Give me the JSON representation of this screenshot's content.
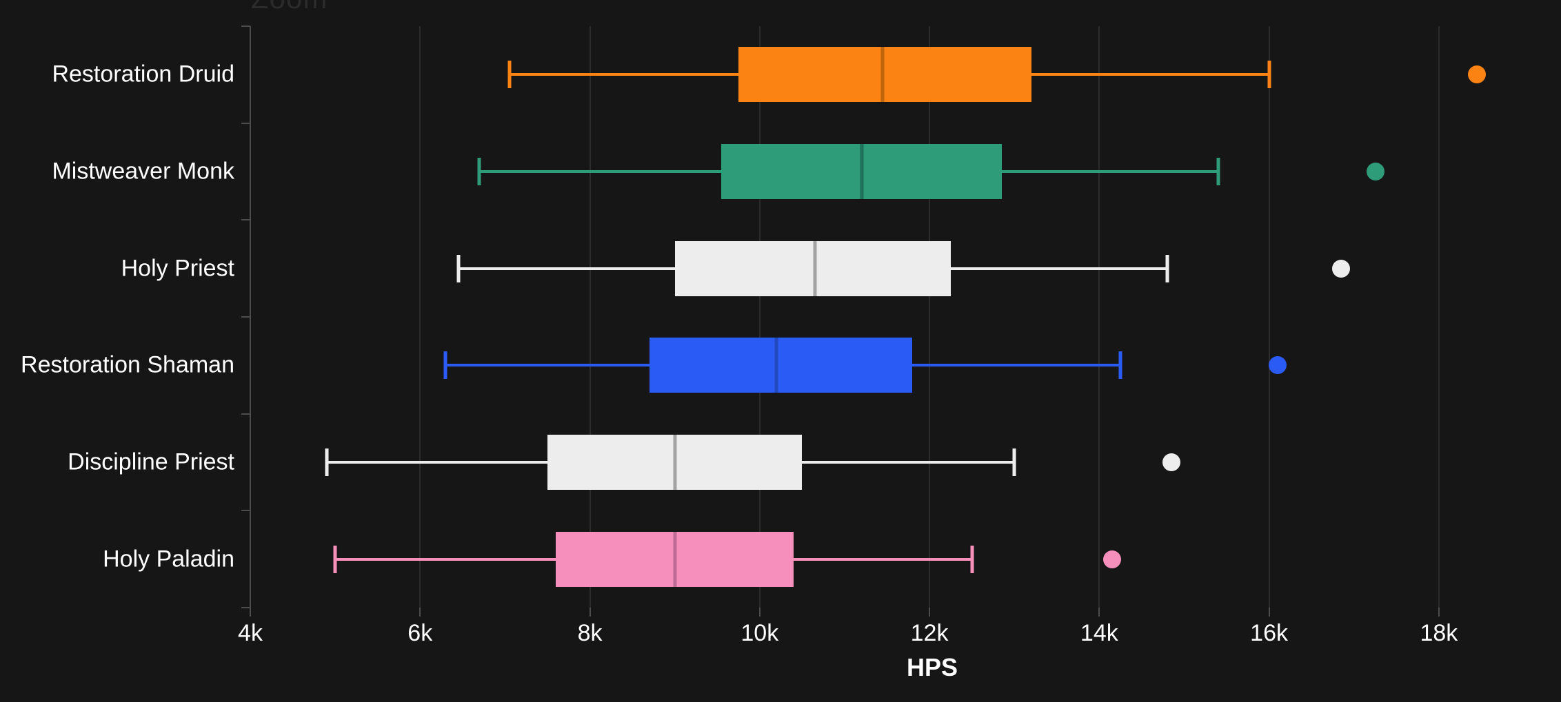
{
  "page": {
    "background": "#161616",
    "zoom_label": "Zoom"
  },
  "chart_data": {
    "type": "boxplot",
    "orientation": "horizontal",
    "title": "",
    "xlabel": "HPS",
    "xlim": [
      4000,
      19000
    ],
    "grid": true,
    "x_ticks": [
      {
        "value": 4000,
        "label": "4k"
      },
      {
        "value": 6000,
        "label": "6k"
      },
      {
        "value": 8000,
        "label": "8k"
      },
      {
        "value": 10000,
        "label": "10k"
      },
      {
        "value": 12000,
        "label": "12k"
      },
      {
        "value": 14000,
        "label": "14k"
      },
      {
        "value": 16000,
        "label": "16k"
      },
      {
        "value": 18000,
        "label": "18k"
      }
    ],
    "series": [
      {
        "name": "Restoration Druid",
        "color": "#FB8313",
        "median_color": "#BD660D",
        "low": 7050,
        "q1": 9750,
        "median": 11450,
        "q3": 13200,
        "high": 16000,
        "outliers": [
          18450
        ]
      },
      {
        "name": "Mistweaver Monk",
        "color": "#2E9C79",
        "median_color": "#1E7158",
        "low": 6700,
        "q1": 9550,
        "median": 11200,
        "q3": 12850,
        "high": 15400,
        "outliers": [
          17250
        ]
      },
      {
        "name": "Holy Priest",
        "color": "#EDEDED",
        "median_color": "#A3A3A3",
        "low": 6450,
        "q1": 9000,
        "median": 10650,
        "q3": 12250,
        "high": 14800,
        "outliers": [
          16850
        ]
      },
      {
        "name": "Restoration Shaman",
        "color": "#2B5BF5",
        "median_color": "#2349BF",
        "low": 6300,
        "q1": 8700,
        "median": 10200,
        "q3": 11800,
        "high": 14250,
        "outliers": [
          16100
        ]
      },
      {
        "name": "Discipline Priest",
        "color": "#EDEDED",
        "median_color": "#A3A3A3",
        "low": 4900,
        "q1": 7500,
        "median": 9000,
        "q3": 10500,
        "high": 13000,
        "outliers": [
          14850
        ]
      },
      {
        "name": "Holy Paladin",
        "color": "#F78FBC",
        "median_color": "#BE6C96",
        "low": 5000,
        "q1": 7600,
        "median": 9000,
        "q3": 10400,
        "high": 12500,
        "outliers": [
          14150
        ]
      }
    ],
    "colors": {
      "background": "#161616",
      "gridline": "#2c2c2c",
      "axis": "#4c4c4c",
      "text": "#ffffff"
    }
  }
}
